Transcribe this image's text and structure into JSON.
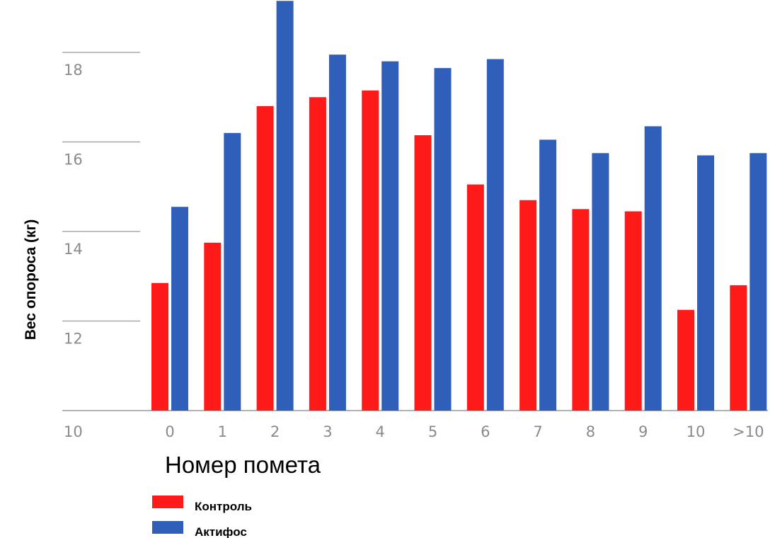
{
  "chart_data": {
    "type": "bar",
    "title": "",
    "xlabel": "Номер помета",
    "ylabel": "Вес опороса (кг)",
    "ylim": [
      10,
      19.2
    ],
    "yticks": [
      10,
      12,
      14,
      16,
      18
    ],
    "categories": [
      "0",
      "1",
      "2",
      "3",
      "4",
      "5",
      "6",
      "7",
      "8",
      "9",
      "10",
      ">10"
    ],
    "series": [
      {
        "name": "Контроль",
        "color": "#ff1a1a",
        "values": [
          12.85,
          13.75,
          16.8,
          17.0,
          17.15,
          16.15,
          15.05,
          14.7,
          14.5,
          14.45,
          12.25,
          12.8
        ]
      },
      {
        "name": "Актифос",
        "color": "#2f5fb8",
        "values": [
          14.55,
          16.2,
          19.15,
          17.95,
          17.8,
          17.65,
          17.85,
          16.05,
          15.75,
          16.35,
          15.7,
          15.75
        ]
      }
    ],
    "grid": true,
    "legend": "bottom-left"
  }
}
